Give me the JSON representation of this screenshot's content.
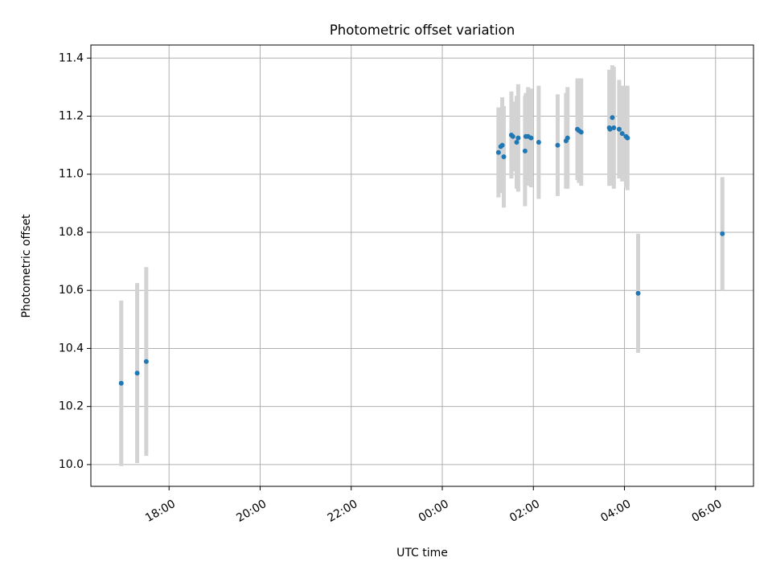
{
  "chart_data": {
    "type": "scatter",
    "title": "Photometric offset variation",
    "xlabel": "UTC time",
    "ylabel": "Photometric offset",
    "grid": true,
    "legend": "none",
    "colors": {
      "point": "#1f77b4",
      "errorbar": "#d3d3d3",
      "grid": "#b0b0b0",
      "axis": "#000000"
    },
    "xlim": [
      "16:17",
      "06:50"
    ],
    "ylim": [
      9.925,
      11.445
    ],
    "xticks": [
      {
        "time": "18:00",
        "label": "18:00"
      },
      {
        "time": "20:00",
        "label": "20:00"
      },
      {
        "time": "22:00",
        "label": "22:00"
      },
      {
        "time": "00:00",
        "label": "00:00"
      },
      {
        "time": "02:00",
        "label": "02:00"
      },
      {
        "time": "04:00",
        "label": "04:00"
      },
      {
        "time": "06:00",
        "label": "06:00"
      }
    ],
    "yticks": [
      "10.0",
      "10.2",
      "10.4",
      "10.6",
      "10.8",
      "11.0",
      "11.2",
      "11.4"
    ],
    "points": [
      {
        "time": "16:57",
        "y": 10.28,
        "err": 0.285
      },
      {
        "time": "17:18",
        "y": 10.315,
        "err": 0.31
      },
      {
        "time": "17:30",
        "y": 10.355,
        "err": 0.325
      },
      {
        "time": "01:14",
        "y": 11.075,
        "err": 0.155
      },
      {
        "time": "01:17",
        "y": 11.095,
        "err": 0.13
      },
      {
        "time": "01:19",
        "y": 11.1,
        "err": 0.165
      },
      {
        "time": "01:21",
        "y": 11.06,
        "err": 0.175
      },
      {
        "time": "01:31",
        "y": 11.135,
        "err": 0.15
      },
      {
        "time": "01:33",
        "y": 11.13,
        "err": 0.12
      },
      {
        "time": "01:38",
        "y": 11.11,
        "err": 0.16
      },
      {
        "time": "01:40",
        "y": 11.125,
        "err": 0.185
      },
      {
        "time": "01:49",
        "y": 11.08,
        "err": 0.19
      },
      {
        "time": "01:50",
        "y": 11.13,
        "err": 0.15
      },
      {
        "time": "01:53",
        "y": 11.13,
        "err": 0.17
      },
      {
        "time": "01:57",
        "y": 11.125,
        "err": 0.17
      },
      {
        "time": "02:07",
        "y": 11.11,
        "err": 0.195
      },
      {
        "time": "02:32",
        "y": 11.1,
        "err": 0.175
      },
      {
        "time": "02:43",
        "y": 11.115,
        "err": 0.165
      },
      {
        "time": "02:45",
        "y": 11.125,
        "err": 0.175
      },
      {
        "time": "02:58",
        "y": 11.155,
        "err": 0.175
      },
      {
        "time": "03:00",
        "y": 11.15,
        "err": 0.18
      },
      {
        "time": "03:03",
        "y": 11.145,
        "err": 0.185
      },
      {
        "time": "03:40",
        "y": 11.16,
        "err": 0.2
      },
      {
        "time": "03:41",
        "y": 11.155,
        "err": 0.195
      },
      {
        "time": "03:44",
        "y": 11.195,
        "err": 0.18
      },
      {
        "time": "03:46",
        "y": 11.16,
        "err": 0.21
      },
      {
        "time": "03:53",
        "y": 11.155,
        "err": 0.17
      },
      {
        "time": "03:57",
        "y": 11.14,
        "err": 0.165
      },
      {
        "time": "04:02",
        "y": 11.13,
        "err": 0.175
      },
      {
        "time": "04:04",
        "y": 11.125,
        "err": 0.18
      },
      {
        "time": "04:18",
        "y": 10.59,
        "err": 0.205
      },
      {
        "time": "06:09",
        "y": 10.795,
        "err": 0.195
      }
    ]
  }
}
